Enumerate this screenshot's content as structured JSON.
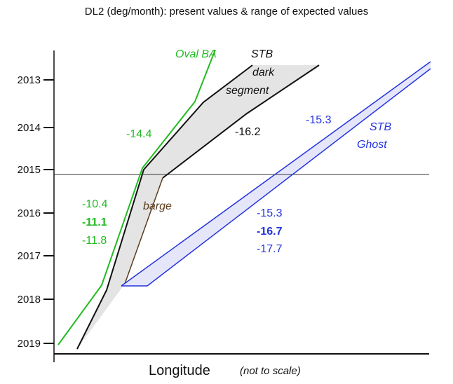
{
  "title": "DL2 (deg/month): present values & range of expected values",
  "x_axis": {
    "label": "Longitude",
    "note": "(not to scale)"
  },
  "y_axis": {
    "ticks": [
      "2013",
      "2014",
      "2015",
      "2016",
      "2017",
      "2018",
      "2019"
    ]
  },
  "features": {
    "oval_ba": {
      "name": "Oval BA",
      "color": "#22bb22",
      "rate_2013": "-14.4",
      "range": [
        "-10.4",
        "-11.1",
        "-11.8"
      ]
    },
    "stb_dark": {
      "name_lines": [
        "STB",
        "dark",
        "segment"
      ],
      "color": "#111111",
      "rate": "-16.2",
      "fill": "#e4e4e4"
    },
    "barge": {
      "name": "barge",
      "color": "#5a3d1e"
    },
    "stb_ghost": {
      "name_lines": [
        "STB",
        "Ghost"
      ],
      "color": "#2233dd",
      "rate_2013": "-15.3",
      "range": [
        "-15.3",
        "-16.7",
        "-17.7"
      ],
      "fill": "#e6e6fb"
    }
  }
}
